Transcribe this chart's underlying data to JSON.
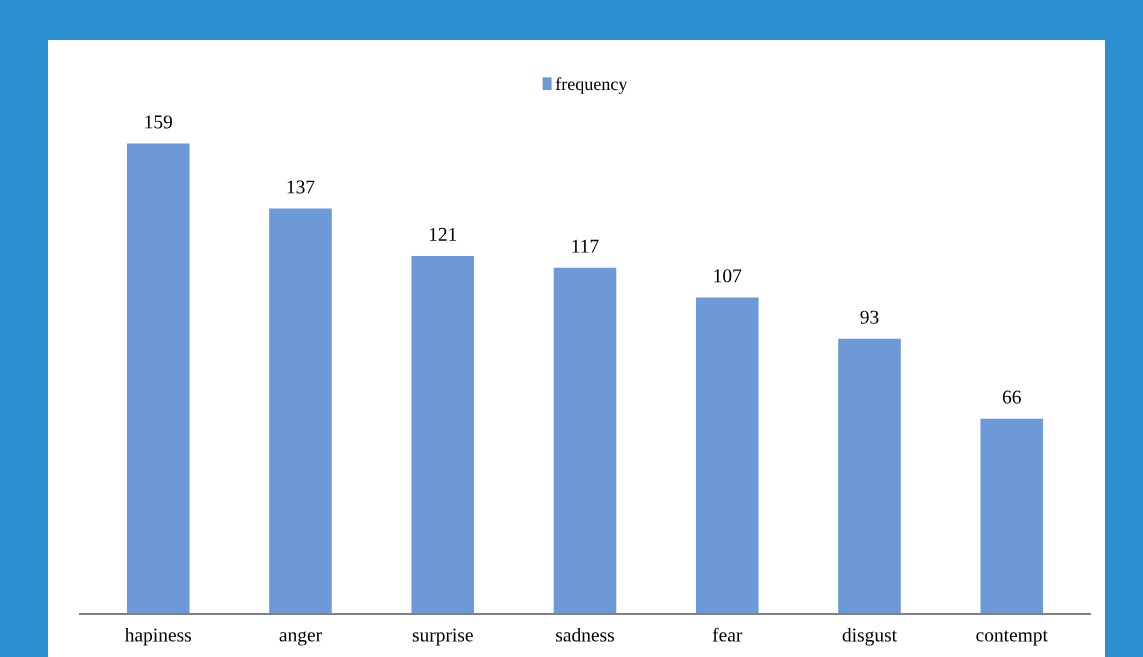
{
  "chart_data": {
    "type": "bar",
    "categories": [
      "hapiness",
      "anger",
      "surprise",
      "sadness",
      "fear",
      "disgust",
      "contempt"
    ],
    "series": [
      {
        "name": "frequency",
        "color": "#6d9ad6",
        "values": [
          159,
          137,
          121,
          117,
          107,
          93,
          66
        ]
      }
    ],
    "data_labels": true,
    "legend": "top",
    "grid": false
  }
}
